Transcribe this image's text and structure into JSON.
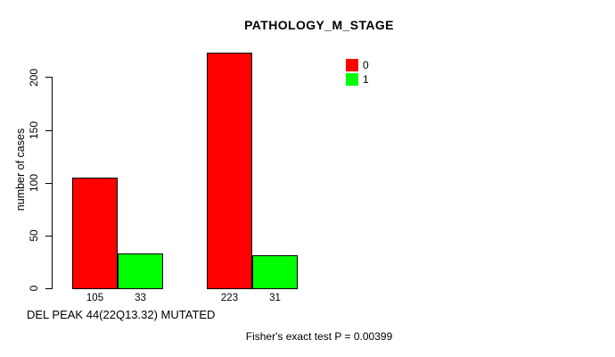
{
  "chart_data": {
    "type": "bar",
    "title": "PATHOLOGY_M_STAGE",
    "ylabel": "number of cases",
    "xlabel": "DEL PEAK 44(22Q13.32) MUTATED",
    "annotation": "Fisher's exact test P = 0.00399",
    "categories": [
      "",
      ""
    ],
    "series": [
      {
        "name": "0",
        "color": "#FF0000",
        "values": [
          105,
          223
        ]
      },
      {
        "name": "1",
        "color": "#00FF00",
        "values": [
          33,
          31
        ]
      }
    ],
    "bar_value_labels": [
      [
        "105",
        "33"
      ],
      [
        "223",
        "31"
      ]
    ],
    "yticks": [
      0,
      50,
      100,
      150,
      200
    ],
    "ylim": [
      0,
      230
    ],
    "grid": false,
    "legend": {
      "position": "top-right",
      "entries": [
        {
          "label": "0",
          "color": "#FF0000"
        },
        {
          "label": "1",
          "color": "#00FF00"
        }
      ]
    }
  }
}
